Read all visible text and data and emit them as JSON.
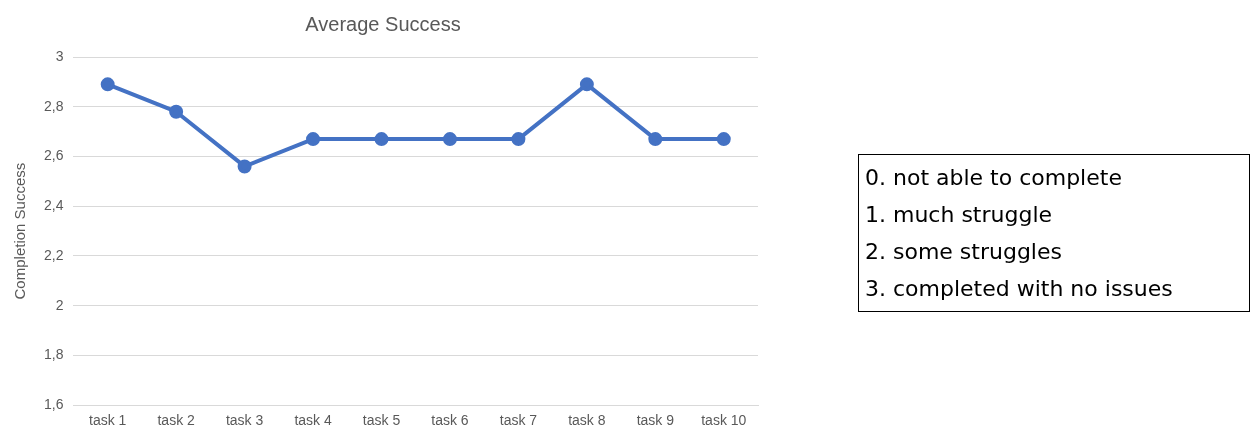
{
  "chart_data": {
    "type": "line",
    "title": "Average Success",
    "ylabel": "Completion Success",
    "categories": [
      "task 1",
      "task 2",
      "task 3",
      "task 4",
      "task 5",
      "task 6",
      "task 7",
      "task 8",
      "task 9",
      "task 10"
    ],
    "series": [
      {
        "color": "#4472c4",
        "values": [
          2.89,
          2.78,
          2.56,
          2.67,
          2.67,
          2.67,
          2.67,
          2.89,
          2.67,
          2.67
        ]
      }
    ],
    "ylim": [
      1.6,
      3
    ],
    "yticks": [
      {
        "value": 1.6,
        "label": "1,6"
      },
      {
        "value": 1.8,
        "label": "1,8"
      },
      {
        "value": 2,
        "label": "2"
      },
      {
        "value": 2.2,
        "label": "2,2"
      },
      {
        "value": 2.4,
        "label": "2,4"
      },
      {
        "value": 2.6,
        "label": "2,6"
      },
      {
        "value": 2.8,
        "label": "2,8"
      },
      {
        "value": 3,
        "label": "3"
      }
    ],
    "grid": "y",
    "legend": false,
    "marker": "circle",
    "line_style": "solid",
    "annotations": [
      "0. not able to complete",
      "1. much struggle",
      "2. some struggles",
      "3. completed with no issues"
    ]
  }
}
